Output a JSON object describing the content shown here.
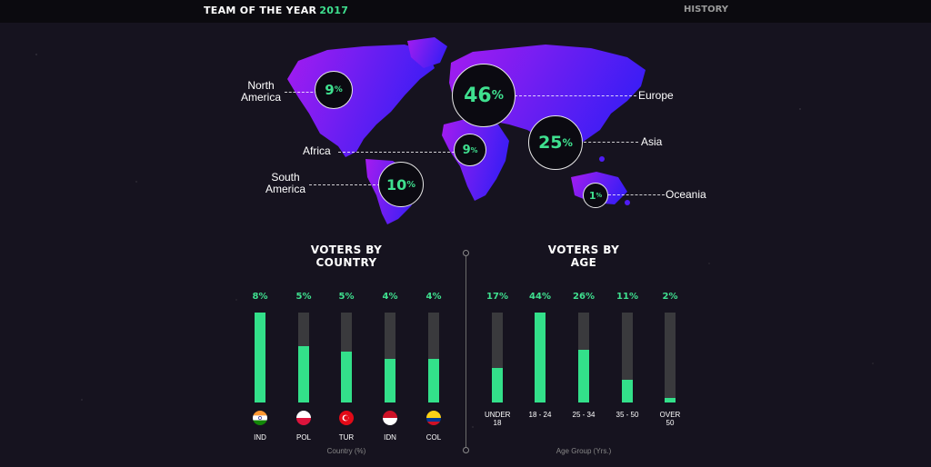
{
  "header": {
    "title": "TEAM OF THE YEAR",
    "year": "2017",
    "nav_history": "HISTORY"
  },
  "map": {
    "regions": [
      {
        "name": "North America",
        "line1": "North",
        "line2": "America",
        "value": "9",
        "unit": "%"
      },
      {
        "name": "Europe",
        "line1": "Europe",
        "value": "46",
        "unit": "%"
      },
      {
        "name": "Asia",
        "line1": "Asia",
        "value": "25",
        "unit": "%"
      },
      {
        "name": "Africa",
        "line1": "Africa",
        "value": "9",
        "unit": "%"
      },
      {
        "name": "South America",
        "line1": "South",
        "line2": "America",
        "value": "10",
        "unit": "%"
      },
      {
        "name": "Oceania",
        "line1": "Oceania",
        "value": "1",
        "unit": "%"
      }
    ],
    "colors": {
      "land_a": "#a51cf0",
      "land_b": "#4f1cf5",
      "accent": "#3fe08f"
    }
  },
  "country_section": {
    "title_line1": "VOTERS BY",
    "title_line2": "COUNTRY",
    "axis_caption": "Country (%)"
  },
  "age_section": {
    "title_line1": "VOTERS BY",
    "title_line2": "AGE",
    "axis_caption": "Age Group (Yrs.)"
  },
  "chart_data": [
    {
      "type": "bar",
      "title": "VOTERS BY COUNTRY",
      "xlabel": "Country (%)",
      "categories": [
        "IND",
        "POL",
        "TUR",
        "IDN",
        "COL"
      ],
      "value_labels": [
        "8%",
        "5%",
        "5%",
        "4%",
        "4%"
      ],
      "values": [
        8,
        5,
        5,
        4,
        4
      ],
      "fill_fraction": [
        1.0,
        0.63,
        0.57,
        0.48,
        0.48
      ],
      "flags": [
        "india-flag-icon",
        "poland-flag-icon",
        "turkey-flag-icon",
        "indonesia-flag-icon",
        "colombia-flag-icon"
      ]
    },
    {
      "type": "bar",
      "title": "VOTERS BY AGE",
      "xlabel": "Age Group (Yrs.)",
      "categories": [
        "UNDER 18",
        "18 - 24",
        "25 - 34",
        "35 - 50",
        "OVER 50"
      ],
      "value_labels": [
        "17%",
        "44%",
        "26%",
        "11%",
        "2%"
      ],
      "values": [
        17,
        44,
        26,
        11,
        2
      ],
      "fill_fraction": [
        0.38,
        1.0,
        0.59,
        0.25,
        0.05
      ]
    }
  ]
}
